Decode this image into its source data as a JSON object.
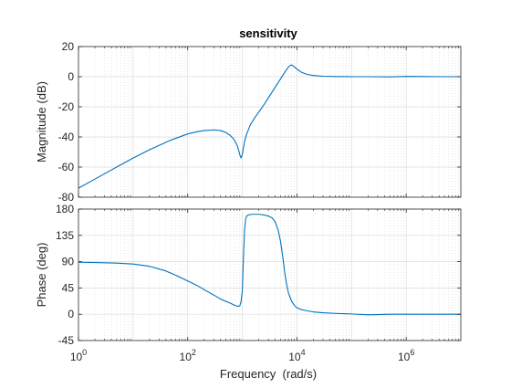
{
  "figure": {
    "title": "sensitivity",
    "xlabel": "Frequency  (rad/s)"
  },
  "chart_data": [
    {
      "type": "line",
      "name": "magnitude",
      "title": "sensitivity",
      "ylabel": "Magnitude (dB)",
      "xscale": "log",
      "xlim": [
        1,
        10000000
      ],
      "ylim": [
        -80,
        20
      ],
      "yticks": [
        -80,
        -60,
        -40,
        -20,
        0,
        20
      ],
      "xticks": [
        1,
        100,
        10000,
        1000000
      ],
      "grid": true,
      "line_color": "#0072BD",
      "series": [
        {
          "x": [
            1,
            2,
            5,
            10,
            20,
            50,
            100,
            150,
            200,
            300,
            400,
            500,
            600,
            700,
            800,
            850,
            900,
            950,
            1000,
            1050,
            1100,
            1200,
            1400,
            1700,
            2000,
            2500,
            3000,
            4000,
            5000,
            6000,
            7000,
            7500,
            8000,
            9000,
            10000,
            12000,
            15000,
            20000,
            30000,
            50000,
            100000,
            200000,
            500000,
            1000000,
            2000000,
            5000000,
            10000000
          ],
          "y": [
            -74,
            -68,
            -60,
            -54,
            -48.5,
            -42,
            -38,
            -36.5,
            -35.8,
            -35.3,
            -35.8,
            -37,
            -39,
            -41.5,
            -45.5,
            -48.5,
            -52,
            -54,
            -51.5,
            -47,
            -43,
            -38,
            -32,
            -27,
            -23.5,
            -18.5,
            -14,
            -7,
            -1.5,
            3,
            6.5,
            7.5,
            7.8,
            6.5,
            5,
            3,
            1.6,
            0.8,
            0.3,
            0.1,
            0,
            0,
            -0.1,
            0.2,
            0.1,
            0,
            0
          ]
        }
      ]
    },
    {
      "type": "line",
      "name": "phase",
      "ylabel": "Phase (deg)",
      "xlabel": "Frequency  (rad/s)",
      "xscale": "log",
      "xlim": [
        1,
        10000000
      ],
      "ylim": [
        -45,
        180
      ],
      "yticks": [
        -45,
        0,
        45,
        90,
        135,
        180
      ],
      "xticks": [
        1,
        100,
        10000,
        1000000
      ],
      "xticklabels": [
        [
          "10",
          "0"
        ],
        [
          "10",
          "2"
        ],
        [
          "10",
          "4"
        ],
        [
          "10",
          "6"
        ]
      ],
      "grid": true,
      "line_color": "#0072BD",
      "series": [
        {
          "x": [
            1,
            2,
            5,
            10,
            20,
            40,
            60,
            100,
            150,
            200,
            300,
            400,
            500,
            600,
            700,
            800,
            850,
            900,
            950,
            1000,
            1050,
            1100,
            1150,
            1200,
            1300,
            1500,
            2000,
            2500,
            3000,
            3500,
            4000,
            4500,
            5000,
            5500,
            6000,
            6500,
            7000,
            8000,
            9000,
            10000,
            12000,
            15000,
            20000,
            30000,
            50000,
            100000,
            200000,
            300000,
            500000,
            1000000,
            2000000,
            5000000,
            10000000
          ],
          "y": [
            89,
            88.5,
            87.5,
            86,
            82,
            74,
            67,
            57,
            49,
            42,
            33,
            26,
            22,
            19,
            16,
            14,
            13.5,
            14.5,
            22,
            40,
            100,
            145,
            163,
            168,
            170,
            171,
            171,
            170,
            168,
            165,
            158,
            145,
            125,
            98,
            70,
            50,
            36,
            22,
            15,
            11,
            8,
            6,
            4,
            2.5,
            1.5,
            0.5,
            -1,
            -0.5,
            0,
            0,
            0,
            0,
            0
          ]
        }
      ]
    }
  ]
}
